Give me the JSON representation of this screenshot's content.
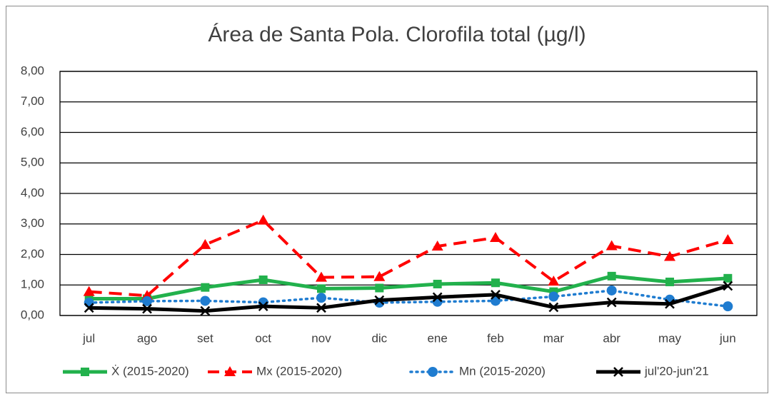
{
  "chart_data": {
    "type": "line",
    "title": "Área de Santa Pola. Clorofila total (µg/l)",
    "categories": [
      "jul",
      "ago",
      "set",
      "oct",
      "nov",
      "dic",
      "ene",
      "feb",
      "mar",
      "abr",
      "may",
      "jun"
    ],
    "series": [
      {
        "name": "Ẋ (2015-2020)",
        "color": "#22b14c",
        "line_style": "solid",
        "marker": "square",
        "values": [
          0.55,
          0.55,
          0.92,
          1.17,
          0.88,
          0.9,
          1.03,
          1.07,
          0.78,
          1.29,
          1.1,
          1.22
        ]
      },
      {
        "name": "Mx (2015-2020)",
        "color": "#ff0000",
        "line_style": "dashed",
        "marker": "triangle",
        "values": [
          0.78,
          0.65,
          2.32,
          3.12,
          1.25,
          1.27,
          2.27,
          2.55,
          1.12,
          2.28,
          1.93,
          2.48
        ]
      },
      {
        "name": "Mn (2015-2020)",
        "color": "#1f7cd0",
        "line_style": "dotted",
        "marker": "circle",
        "values": [
          0.42,
          0.47,
          0.48,
          0.43,
          0.58,
          0.42,
          0.45,
          0.48,
          0.62,
          0.82,
          0.52,
          0.3
        ]
      },
      {
        "name": "jul'20-jun'21",
        "color": "#000000",
        "line_style": "solid",
        "marker": "x",
        "values": [
          0.25,
          0.22,
          0.15,
          0.3,
          0.25,
          0.5,
          0.6,
          0.68,
          0.27,
          0.43,
          0.38,
          0.97
        ]
      }
    ],
    "ylim": [
      0,
      8
    ],
    "yticks": [
      {
        "value": 0,
        "label": "0,00"
      },
      {
        "value": 1,
        "label": "1,00"
      },
      {
        "value": 2,
        "label": "2,00"
      },
      {
        "value": 3,
        "label": "3,00"
      },
      {
        "value": 4,
        "label": "4,00"
      },
      {
        "value": 5,
        "label": "5,00"
      },
      {
        "value": 6,
        "label": "6,00"
      },
      {
        "value": 7,
        "label": "7,00"
      },
      {
        "value": 8,
        "label": "8,00"
      }
    ],
    "grid": true,
    "legend": "bottom"
  }
}
